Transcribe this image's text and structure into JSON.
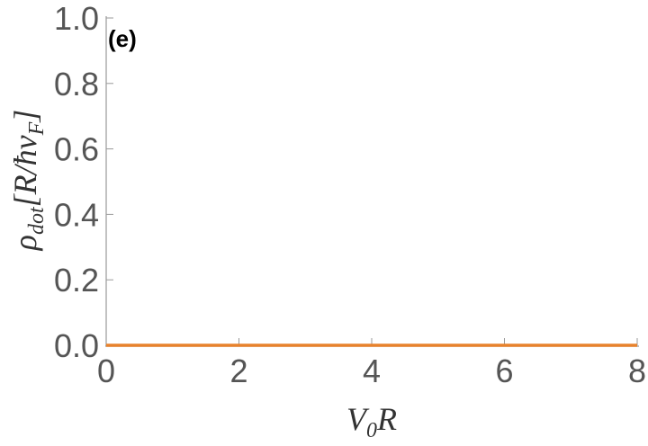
{
  "chart_data": {
    "type": "line",
    "annotation": "(e)",
    "xlabel": [
      "V",
      "0",
      "R"
    ],
    "ylabel": [
      "ρ",
      "dot",
      "[R/ħv",
      "F",
      "]"
    ],
    "x": [
      0,
      8
    ],
    "series": [
      {
        "color": "#e8822c",
        "values": [
          0,
          0
        ]
      }
    ],
    "xlim": [
      0,
      8
    ],
    "xticks": [
      0,
      2,
      4,
      6,
      8
    ],
    "ylim": [
      0,
      1
    ],
    "yticks": [
      {
        "value": 0,
        "label": "0.0"
      },
      0.2,
      0.4,
      0.6,
      0.8,
      {
        "value": 1,
        "label": "1.0"
      }
    ]
  }
}
